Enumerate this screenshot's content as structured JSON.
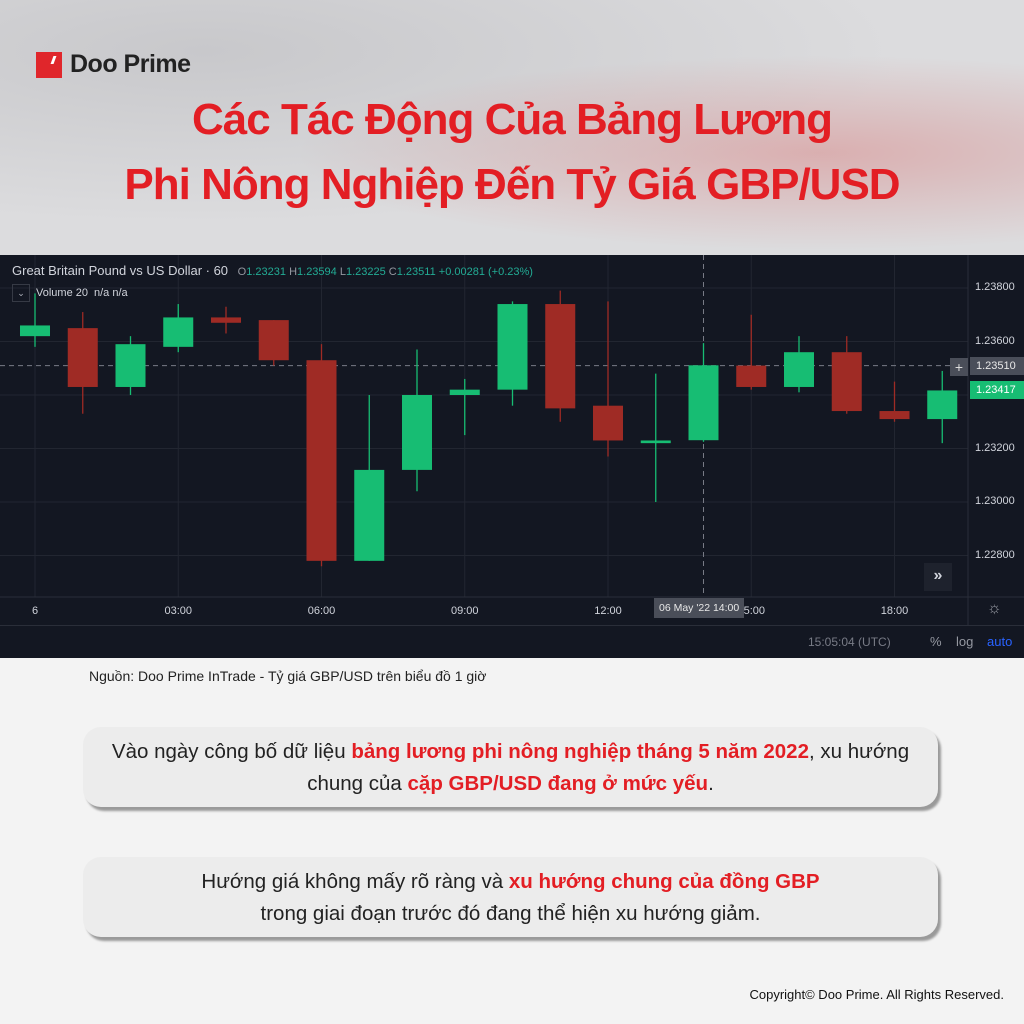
{
  "brand": {
    "name": "Doo Prime",
    "color": "#e31e24"
  },
  "title": {
    "line1": "Các Tác Động Của Bảng Lương",
    "line2": "Phi Nông Nghiệp Đến Tỷ Giá GBP/USD"
  },
  "chart_header": {
    "symbol": "Great Britain Pound vs US Dollar · 60",
    "o_label": "O",
    "o": "1.23231",
    "h_label": "H",
    "h": "1.23594",
    "l_label": "L",
    "l": "1.23225",
    "c_label": "C",
    "c": "1.23511",
    "change": "+0.00281 (+0.23%)",
    "volume": "Volume 20",
    "volume_vals": "n/a n/a"
  },
  "chart_data": {
    "type": "candlestick",
    "interval": "1h",
    "x": [
      "00:00",
      "01:00",
      "02:00",
      "03:00",
      "04:00",
      "05:00",
      "06:00",
      "07:00",
      "08:00",
      "09:00",
      "10:00",
      "11:00",
      "12:00",
      "13:00",
      "14:00",
      "15:00",
      "16:00",
      "17:00",
      "18:00",
      "19:00"
    ],
    "open": [
      1.2362,
      1.2365,
      1.2343,
      1.2358,
      1.2369,
      1.2368,
      1.2353,
      1.2278,
      1.2312,
      1.234,
      1.2342,
      1.2374,
      1.2336,
      1.2322,
      1.23231,
      1.2351,
      1.2343,
      1.2356,
      1.2334,
      1.2331
    ],
    "high": [
      1.2378,
      1.2371,
      1.2362,
      1.2374,
      1.2373,
      1.2368,
      1.2359,
      1.234,
      1.2357,
      1.2346,
      1.2375,
      1.2379,
      1.2375,
      1.2348,
      1.23594,
      1.237,
      1.2362,
      1.2362,
      1.2345,
      1.2349
    ],
    "low": [
      1.2358,
      1.2333,
      1.234,
      1.2356,
      1.2363,
      1.2351,
      1.2276,
      1.2278,
      1.2304,
      1.2325,
      1.2336,
      1.233,
      1.2317,
      1.23,
      1.23225,
      1.2342,
      1.2341,
      1.2333,
      1.233,
      1.2322
    ],
    "close": [
      1.2366,
      1.2343,
      1.2359,
      1.2369,
      1.2367,
      1.2353,
      1.2278,
      1.2312,
      1.234,
      1.2342,
      1.2374,
      1.2335,
      1.2323,
      1.2323,
      1.23511,
      1.2343,
      1.2356,
      1.2334,
      1.2331,
      1.23417
    ],
    "ylim": [
      1.227,
      1.239
    ],
    "y_ticks": [
      "1.23800",
      "1.23600",
      "1.23200",
      "1.23000",
      "1.22800"
    ],
    "x_ticks": [
      "6",
      "03:00",
      "06:00",
      "09:00",
      "12:00",
      "15:00",
      "18:00"
    ],
    "crosshair_price": "1.23510",
    "last_price": "1.23417",
    "crosshair_time": "06 May '22  14:00",
    "up_color": "#17bd73",
    "down_color": "#9f2b25",
    "grid": true
  },
  "toolbar": {
    "time": "15:05:04 (UTC)",
    "percent": "%",
    "log": "log",
    "auto": "auto"
  },
  "source": "Nguồn: Doo Prime InTrade - Tỷ giá GBP/USD trên biểu đồ 1 giờ",
  "box1": {
    "t1": "Vào ngày công bố dữ liệu ",
    "b1": "bảng lương phi nông nghiệp tháng 5 năm 2022",
    "t2": ", xu hướng chung của ",
    "b2": "cặp GBP/USD đang ở mức yếu",
    "t3": "."
  },
  "box2": {
    "t1": "Hướng giá không mấy rõ ràng và ",
    "b1": "xu hướng chung của đồng GBP",
    "t2": " trong giai đoạn trước đó đang thể hiện xu hướng giảm."
  },
  "copyright": "Copyright© Doo Prime. All Rights Reserved."
}
